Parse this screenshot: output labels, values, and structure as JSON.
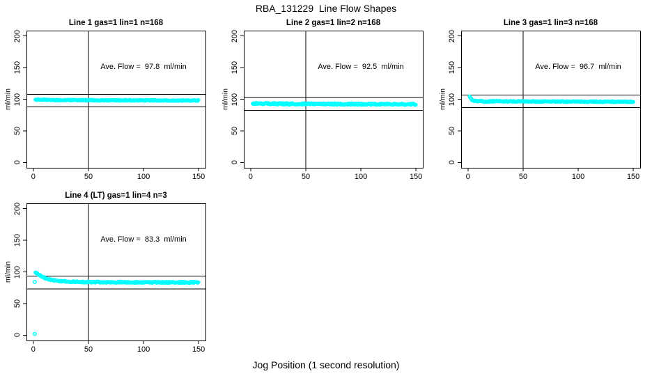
{
  "page": {
    "title": "RBA_131229  Line Flow Shapes",
    "x_axis_label": "Jog Position (1 second resolution)"
  },
  "colors": {
    "points": "#00ffff",
    "axis": "#000000",
    "background": "#ffffff"
  },
  "chart_data": [
    {
      "type": "scatter",
      "title": "Line 1 gas=1 lin=1 n=168",
      "annotation": "Ave. Flow =  97.8  ml/min",
      "ave_flow_ml_min": 97.8,
      "n_runs": 168,
      "ylabel": "ml/min",
      "xlim": [
        0,
        150
      ],
      "ylim": [
        0,
        200
      ],
      "x_ticks": [
        0,
        50,
        100,
        150
      ],
      "y_ticks": [
        0,
        50,
        100,
        150,
        200
      ],
      "vline_x": 50,
      "hlines_y": [
        107.8,
        87.8
      ],
      "x_start": 2,
      "profile": [
        [
          2,
          99.2
        ],
        [
          20,
          98.6
        ],
        [
          80,
          98.2
        ],
        [
          150,
          98.0
        ]
      ],
      "jitter": 0.7,
      "outliers": [],
      "seed": 1
    },
    {
      "type": "scatter",
      "title": "Line 2 gas=1 lin=2 n=168",
      "annotation": "Ave. Flow =  92.5  ml/min",
      "ave_flow_ml_min": 92.5,
      "n_runs": 168,
      "ylabel": "ml/min",
      "xlim": [
        0,
        150
      ],
      "ylim": [
        0,
        200
      ],
      "x_ticks": [
        0,
        50,
        100,
        150
      ],
      "y_ticks": [
        0,
        50,
        100,
        150,
        200
      ],
      "vline_x": 50,
      "hlines_y": [
        102.5,
        82.5
      ],
      "x_start": 2,
      "profile": [
        [
          2,
          93.2
        ],
        [
          40,
          92.6
        ],
        [
          150,
          92.0
        ]
      ],
      "jitter": 1.1,
      "outliers": [],
      "seed": 2
    },
    {
      "type": "scatter",
      "title": "Line 3 gas=1 lin=3 n=168",
      "annotation": "Ave. Flow =  96.7  ml/min",
      "ave_flow_ml_min": 96.7,
      "n_runs": 168,
      "ylabel": "ml/min",
      "xlim": [
        0,
        150
      ],
      "ylim": [
        0,
        200
      ],
      "x_ticks": [
        0,
        50,
        100,
        150
      ],
      "y_ticks": [
        0,
        50,
        100,
        150,
        200
      ],
      "vline_x": 50,
      "hlines_y": [
        106.7,
        86.7
      ],
      "x_start": 1.5,
      "profile": [
        [
          1.5,
          104
        ],
        [
          2.5,
          101
        ],
        [
          4,
          98
        ],
        [
          8,
          96.8
        ],
        [
          150,
          95.9
        ]
      ],
      "jitter": 0.7,
      "outliers": [
        [
          1.5,
          104.5
        ]
      ],
      "seed": 3
    },
    {
      "type": "scatter",
      "title": "Line 4 (LT) gas=1 lin=4 n=3",
      "annotation": "Ave. Flow =  83.3  ml/min",
      "ave_flow_ml_min": 83.3,
      "n_runs": 3,
      "ylabel": "ml/min",
      "xlim": [
        0,
        150
      ],
      "ylim": [
        0,
        200
      ],
      "x_ticks": [
        0,
        50,
        100,
        150
      ],
      "y_ticks": [
        0,
        50,
        100,
        150,
        200
      ],
      "vline_x": 50,
      "hlines_y": [
        93.3,
        73.3
      ],
      "x_start": 2,
      "profile": [
        [
          2,
          99
        ],
        [
          4,
          97
        ],
        [
          7,
          93.5
        ],
        [
          11,
          90
        ],
        [
          16,
          87.5
        ],
        [
          22,
          85.8
        ],
        [
          30,
          84.8
        ],
        [
          45,
          84
        ],
        [
          70,
          83.7
        ],
        [
          150,
          83.4
        ]
      ],
      "jitter": 0.9,
      "outliers": [
        [
          1.3,
          84
        ],
        [
          1.3,
          2
        ]
      ],
      "seed": 4
    }
  ]
}
